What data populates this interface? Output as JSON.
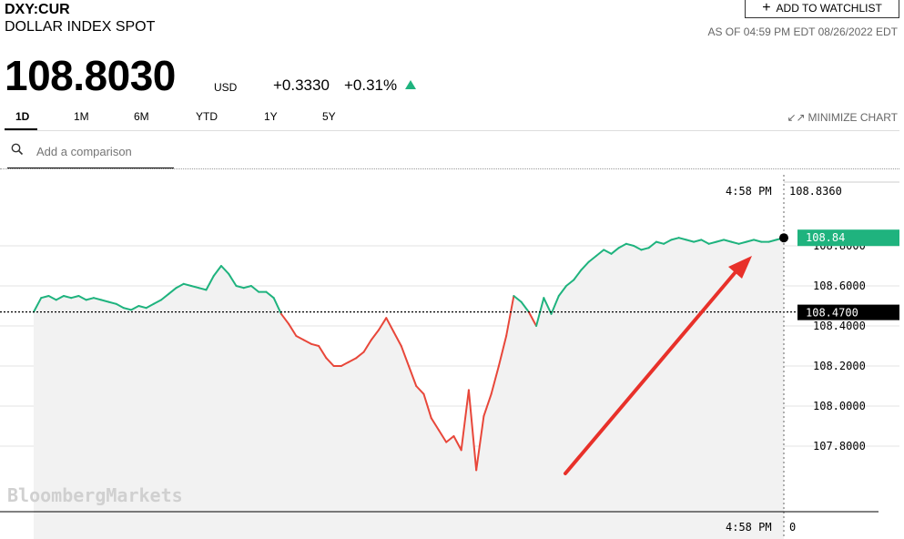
{
  "header": {
    "ticker": "DXY:CUR",
    "name": "DOLLAR INDEX SPOT",
    "price": "108.8030",
    "currency": "USD",
    "change": "+0.3330",
    "change_pct": "+0.31%",
    "watchlist_label": "ADD TO WATCHLIST",
    "as_of": "AS OF 04:59 PM EDT 08/26/2022 EDT"
  },
  "tabs": [
    {
      "label": "1D",
      "active": true
    },
    {
      "label": "1M",
      "active": false
    },
    {
      "label": "6M",
      "active": false
    },
    {
      "label": "YTD",
      "active": false
    },
    {
      "label": "1Y",
      "active": false
    },
    {
      "label": "5Y",
      "active": false
    }
  ],
  "minimize_label": "MINIMIZE CHART",
  "compare": {
    "placeholder": "Add a comparison"
  },
  "watermark": "BloombergMarkets",
  "colors": {
    "up": "#1fb37e",
    "down": "#e8473a",
    "fill": "#f2f2f2",
    "arrow": "#e8312a"
  },
  "chart_data": {
    "type": "line",
    "ylim": [
      107.64,
      108.86
    ],
    "y_ticks": [
      {
        "value": 108.8,
        "label": "108.8000"
      },
      {
        "value": 108.6,
        "label": "108.6000"
      },
      {
        "value": 108.4,
        "label": "108.4000"
      },
      {
        "value": 108.2,
        "label": "108.2000"
      },
      {
        "value": 108.0,
        "label": "108.0000"
      },
      {
        "value": 107.8,
        "label": "107.8000"
      }
    ],
    "previous_close": {
      "value": 108.47,
      "label": "108.4700"
    },
    "last": {
      "value": 108.84,
      "label": "108.84"
    },
    "crosshair": {
      "time": "4:58 PM",
      "value_label": "108.8360",
      "bottom_value": "0"
    },
    "x_range": [
      0,
      100
    ],
    "x": [
      0,
      1,
      2,
      3,
      4,
      5,
      6,
      7,
      8,
      9,
      10,
      11,
      12,
      13,
      14,
      15,
      16,
      17,
      18,
      19,
      20,
      21,
      22,
      23,
      24,
      25,
      26,
      27,
      28,
      29,
      30,
      31,
      32,
      33,
      34,
      35,
      36,
      37,
      38,
      39,
      40,
      41,
      42,
      43,
      44,
      45,
      46,
      47,
      48,
      49,
      50,
      51,
      52,
      53,
      54,
      55,
      56,
      57,
      58,
      59,
      60,
      61,
      62,
      63,
      64,
      65,
      66,
      67,
      68,
      69,
      70,
      71,
      72,
      73,
      74,
      75,
      76,
      77,
      78,
      79,
      80,
      81,
      82,
      83,
      84,
      85,
      86,
      87,
      88,
      89,
      90,
      91,
      92,
      93,
      94,
      95,
      96,
      97,
      98,
      99,
      100
    ],
    "values": [
      108.47,
      108.54,
      108.55,
      108.53,
      108.55,
      108.54,
      108.55,
      108.53,
      108.54,
      108.53,
      108.52,
      108.51,
      108.49,
      108.48,
      108.5,
      108.49,
      108.51,
      108.53,
      108.56,
      108.59,
      108.61,
      108.6,
      108.59,
      108.58,
      108.65,
      108.7,
      108.66,
      108.6,
      108.59,
      108.6,
      108.57,
      108.57,
      108.54,
      108.46,
      108.41,
      108.35,
      108.33,
      108.31,
      108.3,
      108.24,
      108.2,
      108.2,
      108.22,
      108.24,
      108.27,
      108.33,
      108.38,
      108.44,
      108.37,
      108.3,
      108.2,
      108.1,
      108.06,
      107.94,
      107.88,
      107.82,
      107.85,
      107.78,
      108.08,
      107.68,
      107.95,
      108.06,
      108.2,
      108.35,
      108.55,
      108.52,
      108.47,
      108.4,
      108.54,
      108.46,
      108.55,
      108.6,
      108.63,
      108.68,
      108.72,
      108.75,
      108.78,
      108.76,
      108.79,
      108.81,
      108.8,
      108.78,
      108.79,
      108.82,
      108.81,
      108.83,
      108.84,
      108.83,
      108.82,
      108.83,
      108.81,
      108.82,
      108.83,
      108.82,
      108.81,
      108.82,
      108.83,
      108.82,
      108.82,
      108.83,
      108.84
    ]
  }
}
